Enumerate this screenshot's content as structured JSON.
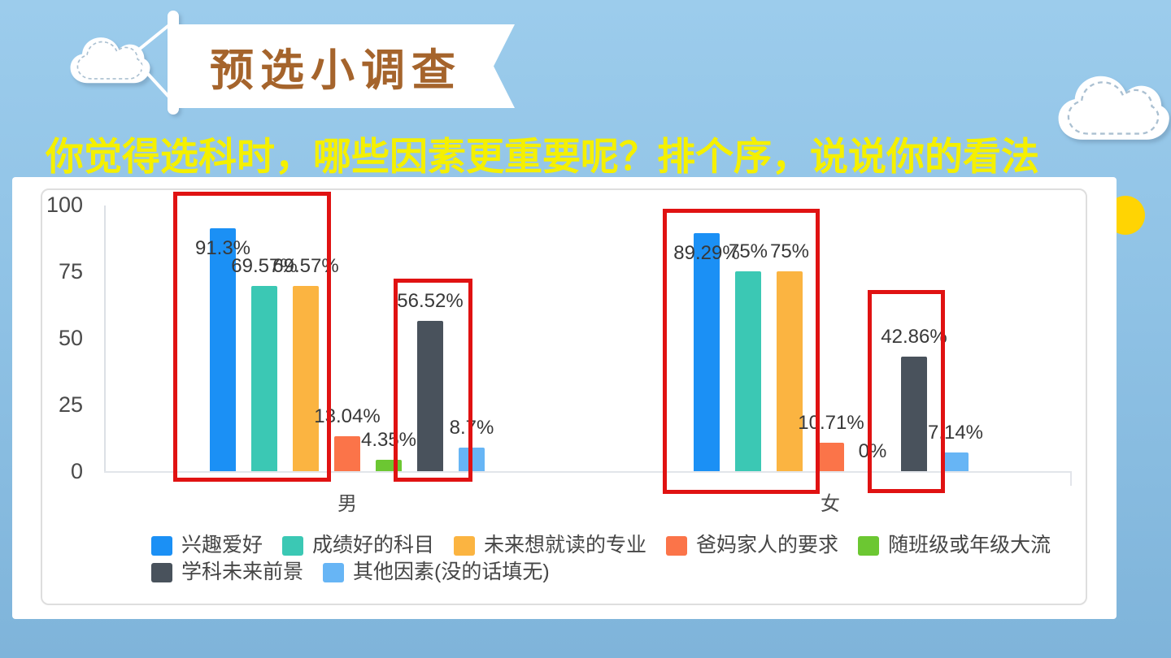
{
  "header": {
    "title": "预选小调查",
    "question": "你觉得选科时，哪些因素更重要呢？排个序，说说你的看法"
  },
  "colors": {
    "background_top": "#9CCCEC",
    "background_bottom": "#7FB4DA",
    "title_text": "#A5642C",
    "question_text": "#F5F000",
    "highlight_box": "#E01212",
    "sun": "#FFD403",
    "axis_line": "#DCE0E6"
  },
  "chart_data": {
    "type": "bar",
    "categories": [
      "男",
      "女"
    ],
    "series": [
      {
        "name": "兴趣爱好",
        "color": "#1B90F5",
        "values": [
          91.3,
          89.29
        ],
        "labels": [
          "91.3%",
          "89.29%"
        ]
      },
      {
        "name": "成绩好的科目",
        "color": "#3BC8B4",
        "values": [
          69.57,
          75
        ],
        "labels": [
          "69.57%",
          "75%"
        ]
      },
      {
        "name": "未来想就读的专业",
        "color": "#FBB441",
        "values": [
          69.57,
          75
        ],
        "labels": [
          "69.57%",
          "75%"
        ]
      },
      {
        "name": "爸妈家人的要求",
        "color": "#FB7449",
        "values": [
          13.04,
          10.71
        ],
        "labels": [
          "13.04%",
          "10.71%"
        ]
      },
      {
        "name": "随班级或年级大流",
        "color": "#6CC732",
        "values": [
          4.35,
          0
        ],
        "labels": [
          "4.35%",
          "0%"
        ]
      },
      {
        "name": "学科未来前景",
        "color": "#49525C",
        "values": [
          56.52,
          42.86
        ],
        "labels": [
          "56.52%",
          "42.86%"
        ]
      },
      {
        "name": "其他因素(没的话填无)",
        "color": "#67B5F5",
        "values": [
          8.7,
          7.14
        ],
        "labels": [
          "8.7%",
          "7.14%"
        ]
      }
    ],
    "ylim": [
      0,
      100
    ],
    "yticks": [
      0,
      25,
      50,
      75,
      100
    ],
    "grid": false,
    "legend_position": "bottom",
    "legend_rows": [
      [
        0,
        1,
        2,
        3,
        4
      ],
      [
        5,
        6
      ]
    ],
    "highlights": [
      {
        "category": "男",
        "series": [
          "兴趣爱好",
          "成绩好的科目",
          "未来想就读的专业"
        ]
      },
      {
        "category": "男",
        "series": [
          "学科未来前景"
        ]
      },
      {
        "category": "女",
        "series": [
          "兴趣爱好",
          "成绩好的科目",
          "未来想就读的专业"
        ]
      },
      {
        "category": "女",
        "series": [
          "学科未来前景"
        ]
      }
    ]
  }
}
